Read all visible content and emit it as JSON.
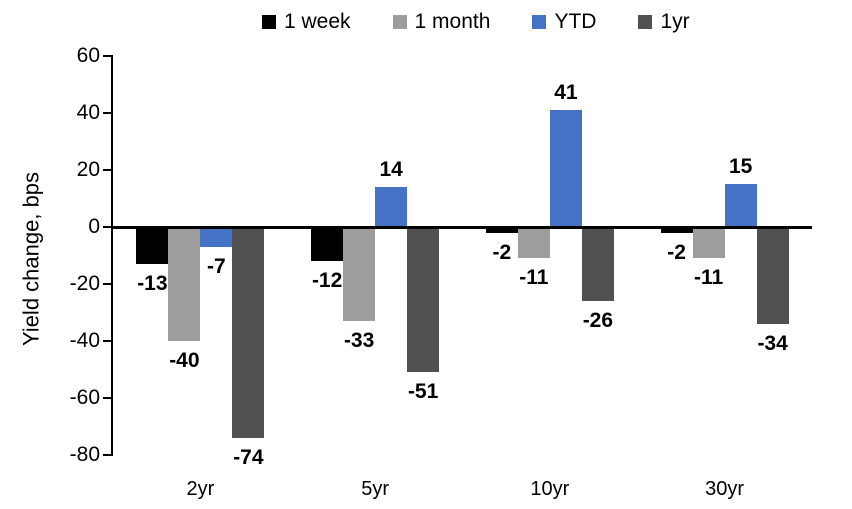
{
  "chart_data": {
    "type": "bar",
    "title": "",
    "ylabel": "Yield change, bps",
    "xlabel": "",
    "categories": [
      "2yr",
      "5yr",
      "10yr",
      "30yr"
    ],
    "series": [
      {
        "name": "1 week",
        "color": "#000000",
        "values": [
          -13,
          -12,
          -2,
          -2
        ]
      },
      {
        "name": "1 month",
        "color": "#9d9d9d",
        "values": [
          -40,
          -33,
          -11,
          -11
        ]
      },
      {
        "name": "YTD",
        "color": "#4472c4",
        "values": [
          -7,
          14,
          41,
          15
        ]
      },
      {
        "name": "1yr",
        "color": "#515151",
        "values": [
          -74,
          -51,
          -26,
          -34
        ]
      }
    ],
    "ylim": [
      -80,
      60
    ],
    "yticks": [
      60,
      40,
      20,
      0,
      -20,
      -40,
      -60,
      -80
    ],
    "grid": false,
    "legend_position": "top",
    "data_labels": "outside-end"
  }
}
